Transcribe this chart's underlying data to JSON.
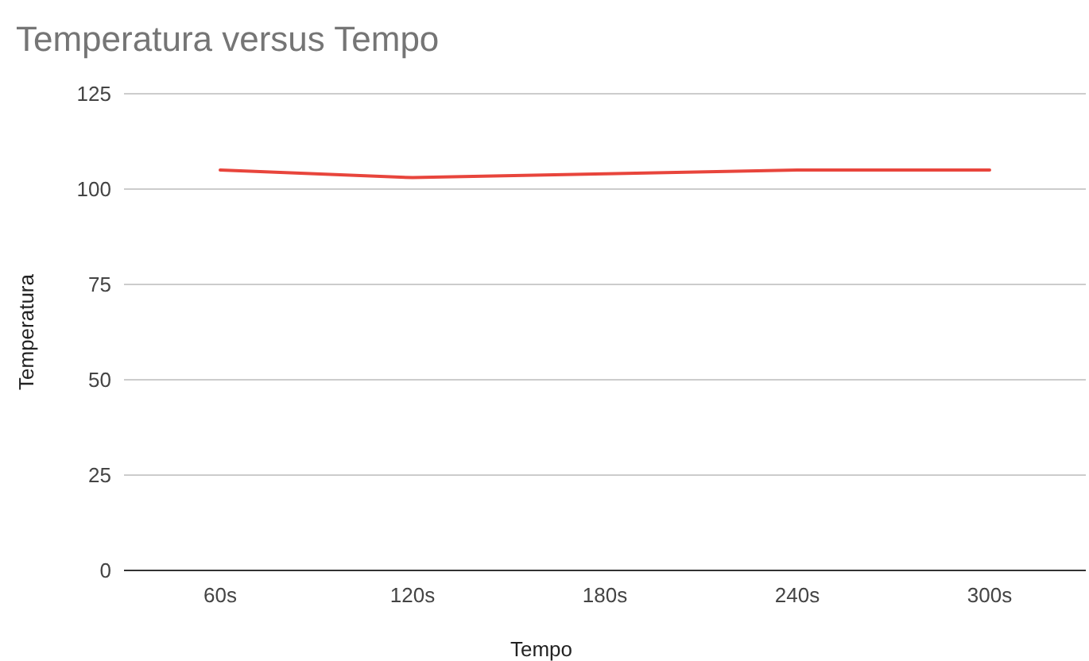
{
  "chart_data": {
    "type": "line",
    "title": "Temperatura versus Tempo",
    "xlabel": "Tempo",
    "ylabel": "Temperatura",
    "categories": [
      "60s",
      "120s",
      "180s",
      "240s",
      "300s"
    ],
    "series": [
      {
        "color": "#e8453c",
        "values": [
          105,
          103,
          104,
          105,
          105
        ]
      }
    ],
    "ylim": [
      0,
      125
    ],
    "yticks": [
      0,
      25,
      50,
      75,
      100,
      125
    ],
    "grid": "y",
    "marker": "none",
    "line_style": "solid"
  }
}
